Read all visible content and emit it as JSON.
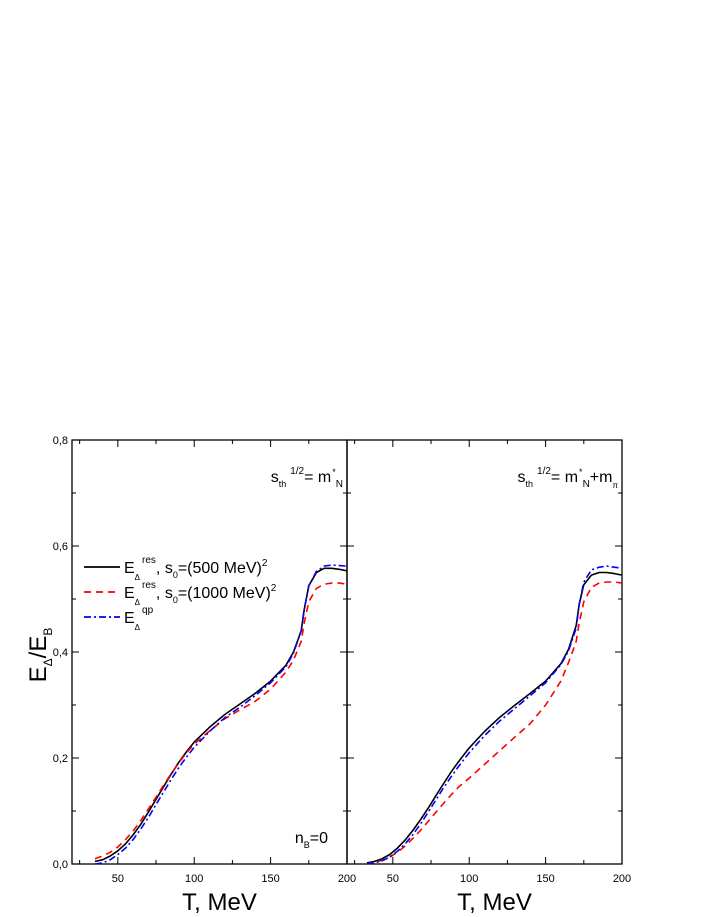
{
  "chart_data": {
    "type": "line",
    "ylabel": "E_Δ/E_B",
    "ylabel_main": "E",
    "ylabel_sub1": "Δ",
    "ylabel_slash": "/E",
    "ylabel_sub2": "B",
    "ylim": [
      0,
      0.8
    ],
    "yticks": [
      0.0,
      0.2,
      0.4,
      0.6,
      0.8
    ],
    "ytick_labels": [
      "0,0",
      "0,2",
      "0,4",
      "0,6",
      "0,8"
    ],
    "grid": false,
    "legend_position": "upper-left (left panel)",
    "legend": [
      {
        "name": "E_Δ^res, s_0=(500 MeV)^2",
        "main": "E",
        "sub": "Δ",
        "sup": "res",
        "rest": ", s",
        "rest_sub": "0",
        "rest2": "=(500 MeV)",
        "rest_sup": "2",
        "color": "#000000",
        "style": "solid"
      },
      {
        "name": "E_Δ^res, s_0=(1000 MeV)^2",
        "main": "E",
        "sub": "Δ",
        "sup": "res",
        "rest": ", s",
        "rest_sub": "0",
        "rest2": "=(1000 MeV)",
        "rest_sup": "2",
        "color": "#ff0000",
        "style": "dashed"
      },
      {
        "name": "E_Δ^qp",
        "main": "E",
        "sub": "Δ",
        "sup": "qp",
        "rest": "",
        "rest_sub": "",
        "rest2": "",
        "rest_sup": "",
        "color": "#0000ff",
        "style": "dash-dot"
      }
    ],
    "panels": [
      {
        "xlabel": "T, MeV",
        "xlim": [
          20,
          200
        ],
        "xticks": [
          50,
          100,
          150,
          200
        ],
        "xtick_labels": [
          "50",
          "100",
          "150",
          "200"
        ],
        "annotation_top": "s_th^1/2 = m*_N",
        "annotation_top_parts": {
          "s": "s",
          "sub": "th",
          "sup": "1/2",
          "eq": "= m",
          "star": "*",
          "n": "N",
          "extra": "",
          "extra_sub": ""
        },
        "annotation_bottom": "n_B=0",
        "annotation_bottom_parts": {
          "n": "n",
          "sub": "B",
          "eq": "=0"
        },
        "x": [
          35,
          40,
          45,
          50,
          55,
          60,
          65,
          70,
          75,
          80,
          85,
          90,
          95,
          100,
          110,
          120,
          130,
          140,
          150,
          160,
          165,
          170,
          172,
          175,
          180,
          185,
          190,
          195,
          200
        ],
        "series": [
          {
            "name": "E_Δ^res, s_0=(500 MeV)^2",
            "values": [
              0.005,
              0.008,
              0.015,
              0.025,
              0.038,
              0.055,
              0.075,
              0.098,
              0.122,
              0.146,
              0.17,
              0.192,
              0.212,
              0.23,
              0.258,
              0.282,
              0.302,
              0.322,
              0.345,
              0.375,
              0.4,
              0.44,
              0.48,
              0.525,
              0.55,
              0.558,
              0.558,
              0.556,
              0.553
            ]
          },
          {
            "name": "E_Δ^res, s_0=(1000 MeV)^2",
            "values": [
              0.01,
              0.015,
              0.022,
              0.032,
              0.046,
              0.062,
              0.082,
              0.104,
              0.126,
              0.149,
              0.171,
              0.191,
              0.21,
              0.226,
              0.251,
              0.274,
              0.291,
              0.307,
              0.33,
              0.362,
              0.385,
              0.42,
              0.455,
              0.495,
              0.52,
              0.528,
              0.53,
              0.53,
              0.528
            ]
          },
          {
            "name": "E_Δ^qp",
            "values": [
              0.0,
              0.002,
              0.008,
              0.018,
              0.03,
              0.046,
              0.066,
              0.088,
              0.112,
              0.136,
              0.16,
              0.182,
              0.202,
              0.22,
              0.25,
              0.276,
              0.296,
              0.318,
              0.342,
              0.372,
              0.398,
              0.44,
              0.48,
              0.525,
              0.552,
              0.562,
              0.564,
              0.563,
              0.562
            ]
          }
        ]
      },
      {
        "xlabel": "T, MeV",
        "xlim": [
          20,
          200
        ],
        "xticks": [
          50,
          100,
          150,
          200
        ],
        "xtick_labels": [
          "50",
          "100",
          "150",
          "200"
        ],
        "annotation_top": "s_th^1/2 = m*_N + m_π",
        "annotation_top_parts": {
          "s": "s",
          "sub": "th",
          "sup": "1/2",
          "eq": "= m",
          "star": "*",
          "n": "N",
          "extra": "+m",
          "extra_sub": "π"
        },
        "annotation_bottom": "",
        "x": [
          33,
          38,
          43,
          48,
          53,
          58,
          63,
          68,
          73,
          78,
          83,
          88,
          93,
          100,
          110,
          120,
          130,
          140,
          150,
          160,
          165,
          170,
          172,
          175,
          180,
          185,
          190,
          195,
          200
        ],
        "series": [
          {
            "name": "E_Δ^res, s_0=(500 MeV)^2",
            "values": [
              0.002,
              0.005,
              0.01,
              0.018,
              0.03,
              0.045,
              0.063,
              0.083,
              0.105,
              0.128,
              0.151,
              0.173,
              0.193,
              0.219,
              0.25,
              0.277,
              0.3,
              0.322,
              0.345,
              0.378,
              0.405,
              0.45,
              0.49,
              0.527,
              0.545,
              0.55,
              0.55,
              0.548,
              0.545
            ]
          },
          {
            "name": "E_Δ^res, s_0=(1000 MeV)^2",
            "values": [
              0.0,
              0.003,
              0.007,
              0.013,
              0.022,
              0.034,
              0.048,
              0.063,
              0.08,
              0.097,
              0.114,
              0.13,
              0.145,
              0.162,
              0.188,
              0.214,
              0.24,
              0.265,
              0.3,
              0.345,
              0.38,
              0.42,
              0.455,
              0.495,
              0.522,
              0.53,
              0.532,
              0.532,
              0.53
            ]
          },
          {
            "name": "E_Δ^qp",
            "values": [
              0.0,
              0.002,
              0.006,
              0.013,
              0.024,
              0.038,
              0.055,
              0.075,
              0.097,
              0.12,
              0.143,
              0.164,
              0.184,
              0.21,
              0.242,
              0.27,
              0.294,
              0.318,
              0.342,
              0.376,
              0.402,
              0.445,
              0.49,
              0.532,
              0.555,
              0.56,
              0.562,
              0.56,
              0.558
            ]
          }
        ]
      }
    ]
  }
}
